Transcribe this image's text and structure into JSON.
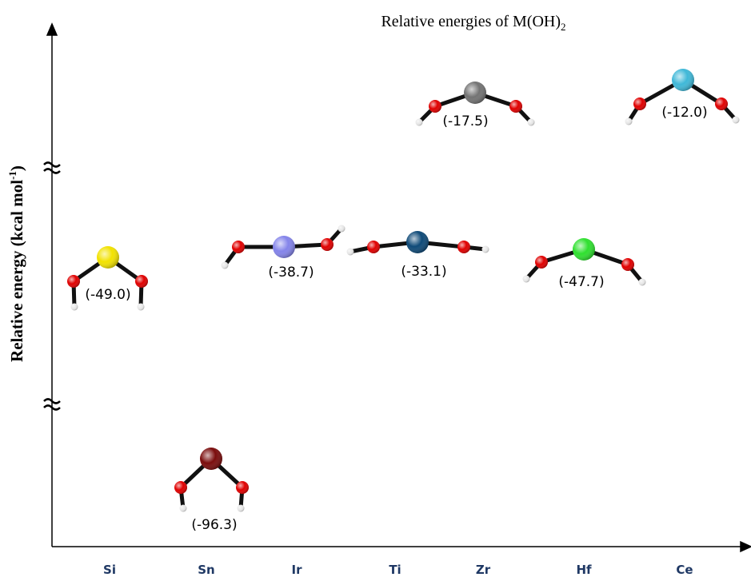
{
  "title": {
    "text": "Relative energies of  M(OH)",
    "subscript": "2"
  },
  "y_axis_label": {
    "text": "Relative energy (kcal mol",
    "superscript": "-1",
    "suffix": ")"
  },
  "categories": [
    "Si",
    "Sn",
    "Ir",
    "Ti",
    "Zr",
    "Hf",
    "Ce"
  ],
  "molecules": [
    {
      "label": "(-49.0)",
      "color": "#f2e200"
    },
    {
      "label": "(-96.3)",
      "color": "#7a0c0c"
    },
    {
      "label": "(-38.7)",
      "color": "#8484ea"
    },
    {
      "label": "(-33.1)",
      "color": "#0f4a78"
    },
    {
      "label": "(-17.5)",
      "color": "#737373"
    },
    {
      "label": "(-47.7)",
      "color": "#2fe02f"
    },
    {
      "label": "(-12.0)",
      "color": "#3fb8d8"
    }
  ]
}
